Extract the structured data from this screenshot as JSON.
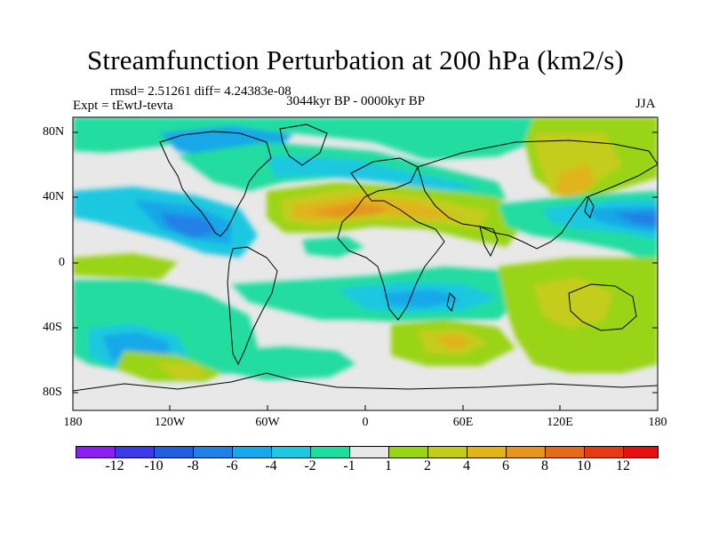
{
  "title": "Streamfunction Perturbation at 200 hPa (km2/s)",
  "stats": "rmsd= 2.51261 diff= 4.24383e-08",
  "expt": "Expt = tEwtJ-tevta",
  "period": "3044kyr BP - 0000kyr BP",
  "season": "JJA",
  "axes": {
    "y_ticks": [
      "80N",
      "40N",
      "0",
      "40S",
      "80S"
    ],
    "x_ticks": [
      "180",
      "120W",
      "60W",
      "0",
      "60E",
      "120E",
      "180"
    ]
  },
  "colorbar": {
    "labels": [
      "-12",
      "-10",
      "-8",
      "-6",
      "-4",
      "-2",
      "-1",
      "1",
      "2",
      "4",
      "6",
      "8",
      "10",
      "12"
    ],
    "colors": [
      "#8a1ff0",
      "#3a3ae6",
      "#1f5fe0",
      "#2080e6",
      "#16a8e8",
      "#1ec8e0",
      "#21dca0",
      "#e8e8e8",
      "#9ad416",
      "#c4cc1a",
      "#e0b41a",
      "#e6961e",
      "#e66a1e",
      "#e63a14",
      "#e61010"
    ]
  },
  "colors": {
    "land_outline": "#000000",
    "background": "#ffffff"
  }
}
